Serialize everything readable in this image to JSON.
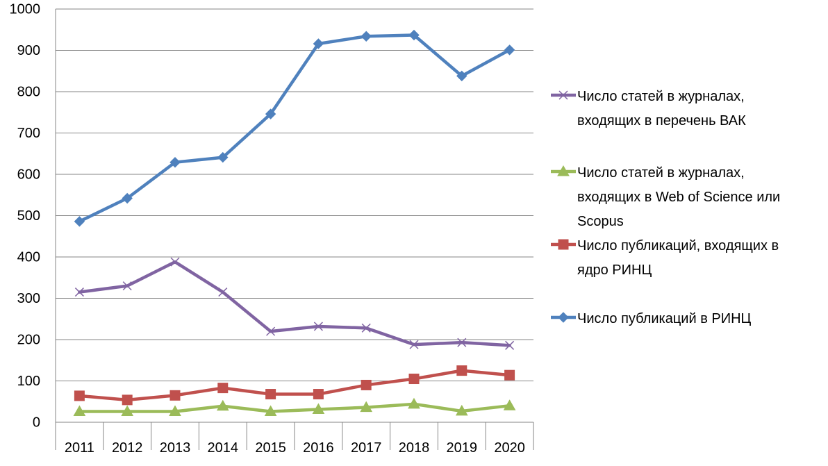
{
  "chart_data": {
    "type": "line",
    "title": "",
    "xlabel": "",
    "ylabel": "",
    "categories": [
      "2011",
      "2012",
      "2013",
      "2014",
      "2015",
      "2016",
      "2017",
      "2018",
      "2019",
      "2020"
    ],
    "ylim": [
      0,
      1000
    ],
    "y_ticks": [
      "0",
      "100",
      "200",
      "300",
      "400",
      "500",
      "600",
      "700",
      "800",
      "900",
      "1000"
    ],
    "grid": true,
    "legend_position": "right",
    "series": [
      {
        "name": "Число статей в журналах, входящих в перечень ВАК",
        "legend_lines": [
          "Число статей в журналах,",
          "входящих в перечень ВАК"
        ],
        "color": "#8064a2",
        "marker": "x",
        "values": [
          315,
          330,
          388,
          315,
          220,
          232,
          228,
          188,
          193,
          186
        ]
      },
      {
        "name": "Число статей в журналах, входящих в Web of Science или Scopus",
        "legend_lines": [
          "Число статей в журналах,",
          "входящих в Web of Science или",
          "Scopus"
        ],
        "color": "#9bbb59",
        "marker": "triangle",
        "values": [
          26,
          26,
          26,
          39,
          26,
          31,
          36,
          44,
          27,
          40
        ]
      },
      {
        "name": "Число публикаций, входящих в ядро РИНЦ",
        "legend_lines": [
          "Число публикаций, входящих в",
          "ядро РИНЦ"
        ],
        "color": "#c0504d",
        "marker": "square",
        "values": [
          64,
          54,
          65,
          83,
          68,
          68,
          90,
          105,
          125,
          114
        ]
      },
      {
        "name": "Число публикаций в РИНЦ",
        "legend_lines": [
          "Число публикаций в РИНЦ"
        ],
        "color": "#4f81bd",
        "marker": "diamond",
        "values": [
          486,
          542,
          629,
          641,
          746,
          916,
          934,
          937,
          838,
          901
        ]
      }
    ]
  }
}
